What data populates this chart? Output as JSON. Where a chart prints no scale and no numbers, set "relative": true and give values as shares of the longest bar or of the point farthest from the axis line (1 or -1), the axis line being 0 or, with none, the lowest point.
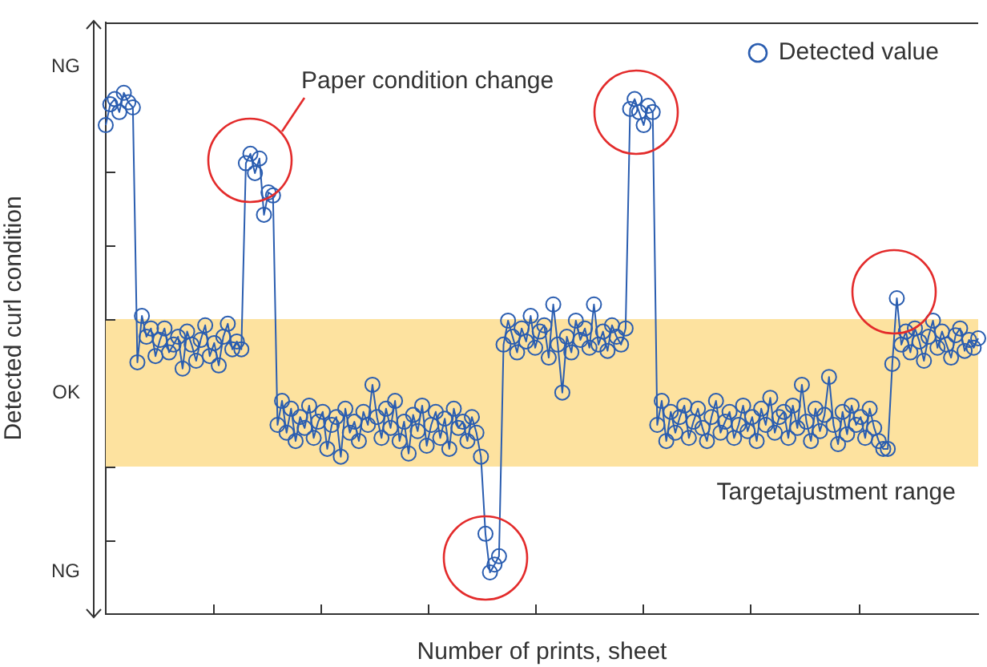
{
  "chart_data": {
    "type": "line",
    "relative": true,
    "xlabel": "Number of prints, sheet",
    "ylabel": "Detected curl condition",
    "marker": "circle",
    "legend": "top right",
    "categories": [
      null,
      null,
      null,
      null,
      null,
      null,
      null,
      null,
      null,
      null,
      null,
      null,
      null,
      null,
      null,
      null,
      null,
      null,
      null,
      null,
      null,
      null,
      null,
      null,
      null,
      null,
      null,
      null,
      null,
      null,
      null,
      null,
      null,
      null,
      null,
      null,
      null,
      null,
      null,
      null,
      null,
      null,
      null,
      null,
      null,
      null,
      null,
      null,
      null,
      null,
      null,
      null,
      null,
      null,
      null,
      null,
      null,
      null,
      null,
      null,
      null,
      null,
      null,
      null,
      null,
      null,
      null,
      null,
      null,
      null,
      null,
      null,
      null,
      null,
      null,
      null,
      null,
      null,
      null,
      null,
      null,
      null,
      null,
      null,
      null,
      null,
      null,
      null,
      null,
      null,
      null,
      null,
      null,
      null,
      null,
      null,
      null,
      null,
      null,
      null,
      null,
      null,
      null,
      null,
      null,
      null,
      null,
      null,
      null,
      null,
      null,
      null,
      null,
      null,
      null,
      null,
      null,
      null,
      null,
      null,
      null,
      null,
      null,
      null,
      null,
      null,
      null,
      null,
      null,
      null,
      null,
      null,
      null,
      null,
      null,
      null,
      null,
      null,
      null,
      null,
      null,
      null,
      null,
      null,
      null,
      null,
      null,
      null,
      null,
      null,
      null,
      null,
      null,
      null,
      null,
      null,
      null,
      null,
      null,
      null,
      null,
      null,
      null,
      null,
      null,
      null,
      null,
      null,
      null,
      null,
      null,
      null,
      null,
      null,
      null,
      null,
      null,
      null,
      null,
      null,
      null,
      null,
      null,
      null,
      null,
      null,
      null,
      null,
      null,
      null,
      null,
      null,
      null,
      null
    ],
    "bands": [
      {
        "axis": "y",
        "from": 0.283,
        "to": 0.566,
        "label": "Targetajustment range",
        "color": "#fde29f"
      }
    ],
    "annotations": [
      "Paper condition change",
      "NG",
      "OK",
      "NG"
    ],
    "series": [
      {
        "name": "Detected value",
        "color": "#2a5db0",
        "values": [
          0.938,
          0.978,
          0.988,
          0.963,
          1,
          0.982,
          0.972,
          0.483,
          0.572,
          0.532,
          0.548,
          0.495,
          0.526,
          0.548,
          0.502,
          0.517,
          0.532,
          0.471,
          0.542,
          0.517,
          0.486,
          0.526,
          0.554,
          0.495,
          0.52,
          0.477,
          0.532,
          0.557,
          0.508,
          0.523,
          0.508,
          0.865,
          0.883,
          0.846,
          0.874,
          0.766,
          0.809,
          0.803,
          0.363,
          0.409,
          0.348,
          0.394,
          0.332,
          0.378,
          0.357,
          0.4,
          0.338,
          0.369,
          0.388,
          0.317,
          0.363,
          0.378,
          0.302,
          0.394,
          0.348,
          0.369,
          0.332,
          0.388,
          0.363,
          0.44,
          0.378,
          0.338,
          0.394,
          0.357,
          0.409,
          0.332,
          0.369,
          0.308,
          0.382,
          0.351,
          0.4,
          0.323,
          0.363,
          0.388,
          0.338,
          0.375,
          0.317,
          0.394,
          0.357,
          0.369,
          0.332,
          0.378,
          0.348,
          0.302,
          0.154,
          0.08,
          0.095,
          0.111,
          0.517,
          0.563,
          0.532,
          0.502,
          0.548,
          0.523,
          0.572,
          0.511,
          0.542,
          0.554,
          0.492,
          0.594,
          0.517,
          0.425,
          0.532,
          0.502,
          0.563,
          0.526,
          0.548,
          0.511,
          0.594,
          0.517,
          0.542,
          0.505,
          0.554,
          0.532,
          0.517,
          0.548,
          0.969,
          0.988,
          0.963,
          0.938,
          0.975,
          0.963,
          0.363,
          0.409,
          0.332,
          0.388,
          0.348,
          0.378,
          0.4,
          0.338,
          0.369,
          0.394,
          0.357,
          0.332,
          0.378,
          0.409,
          0.348,
          0.369,
          0.388,
          0.338,
          0.363,
          0.4,
          0.351,
          0.378,
          0.332,
          0.394,
          0.363,
          0.415,
          0.348,
          0.378,
          0.388,
          0.338,
          0.4,
          0.357,
          0.44,
          0.369,
          0.332,
          0.394,
          0.351,
          0.382,
          0.455,
          0.363,
          0.326,
          0.388,
          0.345,
          0.4,
          0.363,
          0.378,
          0.338,
          0.394,
          0.357,
          0.332,
          0.317,
          0.317,
          0.48,
          0.606,
          0.517,
          0.542,
          0.502,
          0.548,
          0.523,
          0.486,
          0.532,
          0.563,
          0.511,
          0.542,
          0.517,
          0.492,
          0.535,
          0.548,
          0.505,
          0.526,
          0.511,
          0.529
        ]
      }
    ]
  }
}
